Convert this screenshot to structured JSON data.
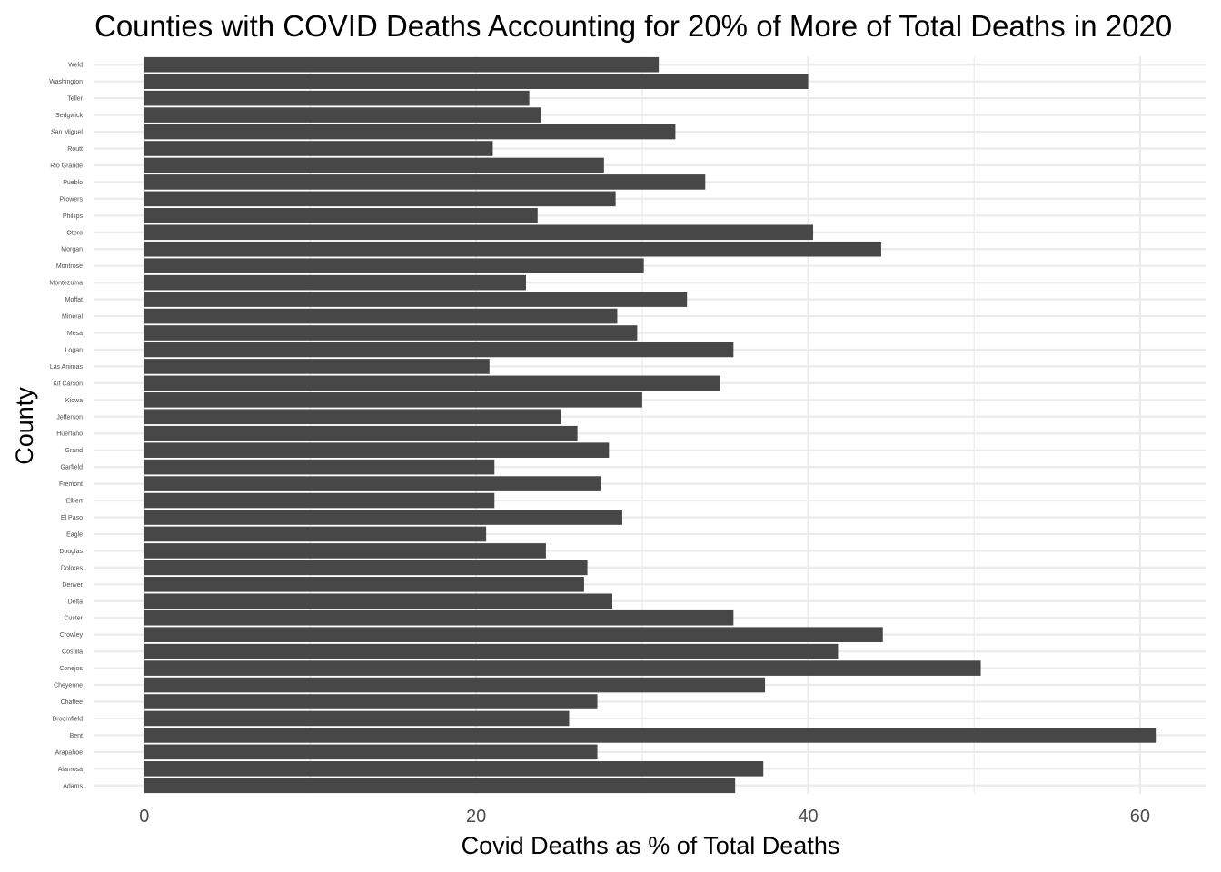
{
  "chart_data": {
    "type": "bar",
    "orientation": "horizontal",
    "title": "Counties with COVID Deaths Accounting for 20% of More of Total Deaths in 2020",
    "xlabel": "Covid Deaths as % of Total Deaths",
    "ylabel": "County",
    "xlim": [
      -3,
      64
    ],
    "xticks": [
      0,
      20,
      40,
      60
    ],
    "xtick_labels": [
      "0",
      "20",
      "40",
      "60"
    ],
    "grid": true,
    "legend": "none",
    "bar_color": "#474747",
    "grid_color": "#ebebeb",
    "categories": [
      "Adams",
      "Alamosa",
      "Arapahoe",
      "Bent",
      "Broomfield",
      "Chaffee",
      "Cheyenne",
      "Conejos",
      "Costilla",
      "Crowley",
      "Custer",
      "Delta",
      "Denver",
      "Dolores",
      "Douglas",
      "Eagle",
      "El Paso",
      "Elbert",
      "Fremont",
      "Garfield",
      "Grand",
      "Huerfano",
      "Jefferson",
      "Kiowa",
      "Kit Carson",
      "Las Animas",
      "Logan",
      "Mesa",
      "Mineral",
      "Moffat",
      "Montezuma",
      "Montrose",
      "Morgan",
      "Otero",
      "Phillips",
      "Prowers",
      "Pueblo",
      "Rio Grande",
      "Routt",
      "San Miguel",
      "Sedgwick",
      "Teller",
      "Washington",
      "Weld"
    ],
    "values": [
      35.6,
      37.3,
      27.3,
      61.0,
      25.6,
      27.3,
      37.4,
      50.4,
      41.8,
      44.5,
      35.5,
      28.2,
      26.5,
      26.7,
      24.2,
      20.6,
      28.8,
      21.1,
      27.5,
      21.1,
      28.0,
      26.1,
      25.1,
      30.0,
      34.7,
      20.8,
      35.5,
      29.7,
      28.5,
      32.7,
      23.0,
      30.1,
      44.4,
      40.3,
      23.7,
      28.4,
      33.8,
      27.7,
      21.0,
      32.0,
      23.9,
      23.2,
      40.0,
      31.0
    ]
  }
}
